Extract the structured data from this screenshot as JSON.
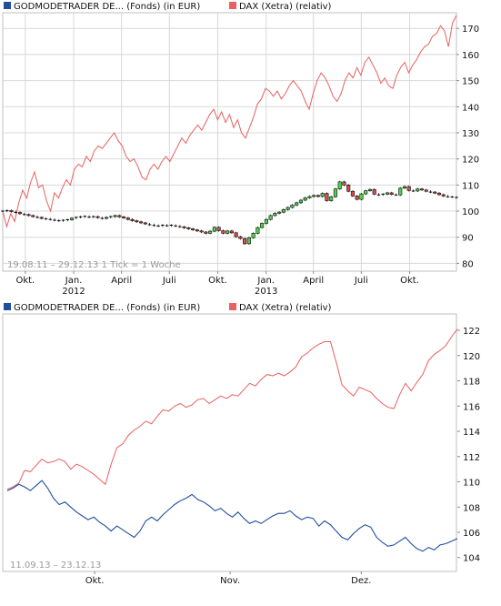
{
  "colors": {
    "fund_line": "#1f4f9a",
    "fund_swatch": "#1f4f9a",
    "dax_line": "#e86060",
    "dax_swatch": "#e86060",
    "candle_up": "#4fcf4f",
    "candle_down": "#d94a4a",
    "candle_stroke": "#111111",
    "frame": "#bfbfbf",
    "grid": "#d8d8d8"
  },
  "chart_data": [
    {
      "type": "line",
      "title": "",
      "legend": [
        {
          "name": "GODMODETRADER DE... (Fonds) (in EUR)",
          "swatch": "fund_swatch"
        },
        {
          "name": "DAX (Xetra) (relativ)",
          "swatch": "dax_swatch"
        }
      ],
      "legend_placement": "top",
      "range_label": "19.08.11 – 29.12.13   1 Tick = 1 Woche",
      "x_ticks": [
        "Okt.",
        "Jan.",
        "April",
        "Juli",
        "Okt.",
        "Jan.",
        "April",
        "Juli",
        "Okt."
      ],
      "x_year_labels": [
        {
          "label": "2012",
          "tick_index": 1
        },
        {
          "label": "2013",
          "tick_index": 5
        }
      ],
      "x_start": "2011-08-19",
      "x_end": "2013-12-29",
      "x_tick_dates": [
        "2011-10-01",
        "2012-01-01",
        "2012-04-01",
        "2012-07-01",
        "2012-10-01",
        "2013-01-01",
        "2013-04-01",
        "2013-07-01",
        "2013-10-01"
      ],
      "y_ticks": [
        80,
        90,
        100,
        110,
        120,
        130,
        140,
        150,
        160,
        170
      ],
      "ylim": [
        77,
        176
      ],
      "grid": true,
      "series": [
        {
          "name": "DAX (Xetra) (relativ)",
          "kind": "line",
          "values": [
            100,
            94,
            99,
            96,
            103,
            108,
            105,
            111,
            115,
            109,
            110,
            104,
            100,
            107,
            105,
            109,
            112,
            110,
            116,
            118,
            117,
            121,
            119,
            123,
            125,
            124,
            126,
            128,
            130,
            127,
            125,
            121,
            119,
            120,
            117,
            113,
            112,
            116,
            118,
            116,
            119,
            121,
            119,
            122,
            125,
            128,
            126,
            129,
            131,
            133,
            131,
            134,
            137,
            139,
            135,
            138,
            134,
            137,
            132,
            135,
            130,
            128,
            132,
            136,
            141,
            143,
            147,
            146,
            144,
            146,
            143,
            145,
            148,
            150,
            148,
            146,
            142,
            139,
            145,
            150,
            153,
            151,
            148,
            144,
            142,
            145,
            150,
            153,
            151,
            155,
            152,
            157,
            159,
            156,
            153,
            149,
            151,
            148,
            147,
            152,
            155,
            157,
            153,
            156,
            158,
            161,
            163,
            164,
            167,
            168,
            171,
            169,
            163,
            172,
            175
          ]
        },
        {
          "name": "GODMODETRADER DE... (Fonds) (in EUR)",
          "kind": "candlestick",
          "values": [
            100,
            100.2,
            99.8,
            99.5,
            99,
            98.7,
            98.3,
            97.9,
            97.6,
            97.2,
            97,
            96.8,
            96.5,
            96.3,
            96.5,
            96.7,
            97.3,
            97.6,
            97.8,
            98,
            97.7,
            97.9,
            97.5,
            97.2,
            97.6,
            97.9,
            98.3,
            97.8,
            97.4,
            96.8,
            96.3,
            95.9,
            95.5,
            95.1,
            94.8,
            94.5,
            94.3,
            94.6,
            94.4,
            94.6,
            94.3,
            94,
            93.6,
            93.2,
            92.8,
            92.4,
            92,
            91.5,
            92.3,
            93.8,
            92.5,
            91.5,
            92.4,
            91.7,
            90.2,
            89.5,
            87.5,
            89.8,
            91.5,
            93.7,
            95.3,
            96.8,
            98.3,
            99.2,
            99.6,
            100.6,
            101.4,
            102.3,
            103.2,
            104.2,
            105.1,
            105.6,
            106,
            105.6,
            106.8,
            104,
            105.5,
            108.5,
            111.2,
            110,
            107.6,
            105.8,
            104.5,
            106.6,
            107.8,
            108.3,
            106.5,
            106.2,
            106.5,
            107,
            106.4,
            106.2,
            108.8,
            109.4,
            107.9,
            107.7,
            108.5,
            108.1,
            107.6,
            107.3,
            106.9,
            106.3,
            105.8,
            105.5,
            105.4,
            105.2
          ]
        }
      ]
    },
    {
      "type": "line",
      "title": "",
      "legend": [
        {
          "name": "GODMODETRADER DE... (Fonds) (in EUR)",
          "swatch": "fund_swatch"
        },
        {
          "name": "DAX (Xetra) (relativ)",
          "swatch": "dax_swatch"
        }
      ],
      "legend_placement": "top",
      "range_label": "11.09.13 – 23.12.13",
      "x_ticks": [
        "Okt.",
        "Nov.",
        "Dez."
      ],
      "x_start": "2013-09-11",
      "x_end": "2013-12-23",
      "x_tick_dates": [
        "2013-10-01",
        "2013-11-01",
        "2013-12-01"
      ],
      "y_ticks": [
        104,
        106,
        108,
        110,
        112,
        114,
        116,
        118,
        120,
        122
      ],
      "ylim": [
        102.9,
        123.3
      ],
      "grid": false,
      "series": [
        {
          "name": "DAX (Xetra) (relativ)",
          "kind": "line",
          "values": [
            109.4,
            109.6,
            109.9,
            110.9,
            110.8,
            111.3,
            111.8,
            111.5,
            111.6,
            111.8,
            111.6,
            111.0,
            111.4,
            111.2,
            110.9,
            110.6,
            110.2,
            109.8,
            111.4,
            112.7,
            113.0,
            113.7,
            114.1,
            114.4,
            114.8,
            114.6,
            115.2,
            115.7,
            115.6,
            116.0,
            116.2,
            115.9,
            116.1,
            116.5,
            116.6,
            116.2,
            116.5,
            116.8,
            116.6,
            116.9,
            116.8,
            117.3,
            117.8,
            117.6,
            118.1,
            118.5,
            118.4,
            118.6,
            118.4,
            118.7,
            119.1,
            119.9,
            120.2,
            120.6,
            120.9,
            121.1,
            121.1,
            119.5,
            117.7,
            117.2,
            116.8,
            117.5,
            117.3,
            117.1,
            116.6,
            116.2,
            115.9,
            115.8,
            116.9,
            117.8,
            117.2,
            117.9,
            118.5,
            119.6,
            120.1,
            120.4,
            120.8,
            121.5,
            122.1
          ]
        },
        {
          "name": "GODMODETRADER DE... (Fonds) (in EUR)",
          "kind": "line",
          "values": [
            109.3,
            109.5,
            109.8,
            109.6,
            109.3,
            109.7,
            110.1,
            109.5,
            108.7,
            108.2,
            108.4,
            108.0,
            107.6,
            107.3,
            107.0,
            107.2,
            106.8,
            106.5,
            106.1,
            106.5,
            106.2,
            105.9,
            105.6,
            106.1,
            106.9,
            107.2,
            106.9,
            107.4,
            107.8,
            108.2,
            108.5,
            108.7,
            109.0,
            108.6,
            108.4,
            108.1,
            107.7,
            107.9,
            107.5,
            107.2,
            107.6,
            107.1,
            106.7,
            106.9,
            106.7,
            107.0,
            107.3,
            107.5,
            107.5,
            107.7,
            107.3,
            107.0,
            107.2,
            107.1,
            106.5,
            106.9,
            106.6,
            106.1,
            105.6,
            105.4,
            105.9,
            106.3,
            106.6,
            106.4,
            105.6,
            105.2,
            104.9,
            105.0,
            105.3,
            105.6,
            105.1,
            104.7,
            104.5,
            104.8,
            104.6,
            105.0,
            105.1,
            105.3,
            105.5
          ]
        }
      ]
    }
  ]
}
